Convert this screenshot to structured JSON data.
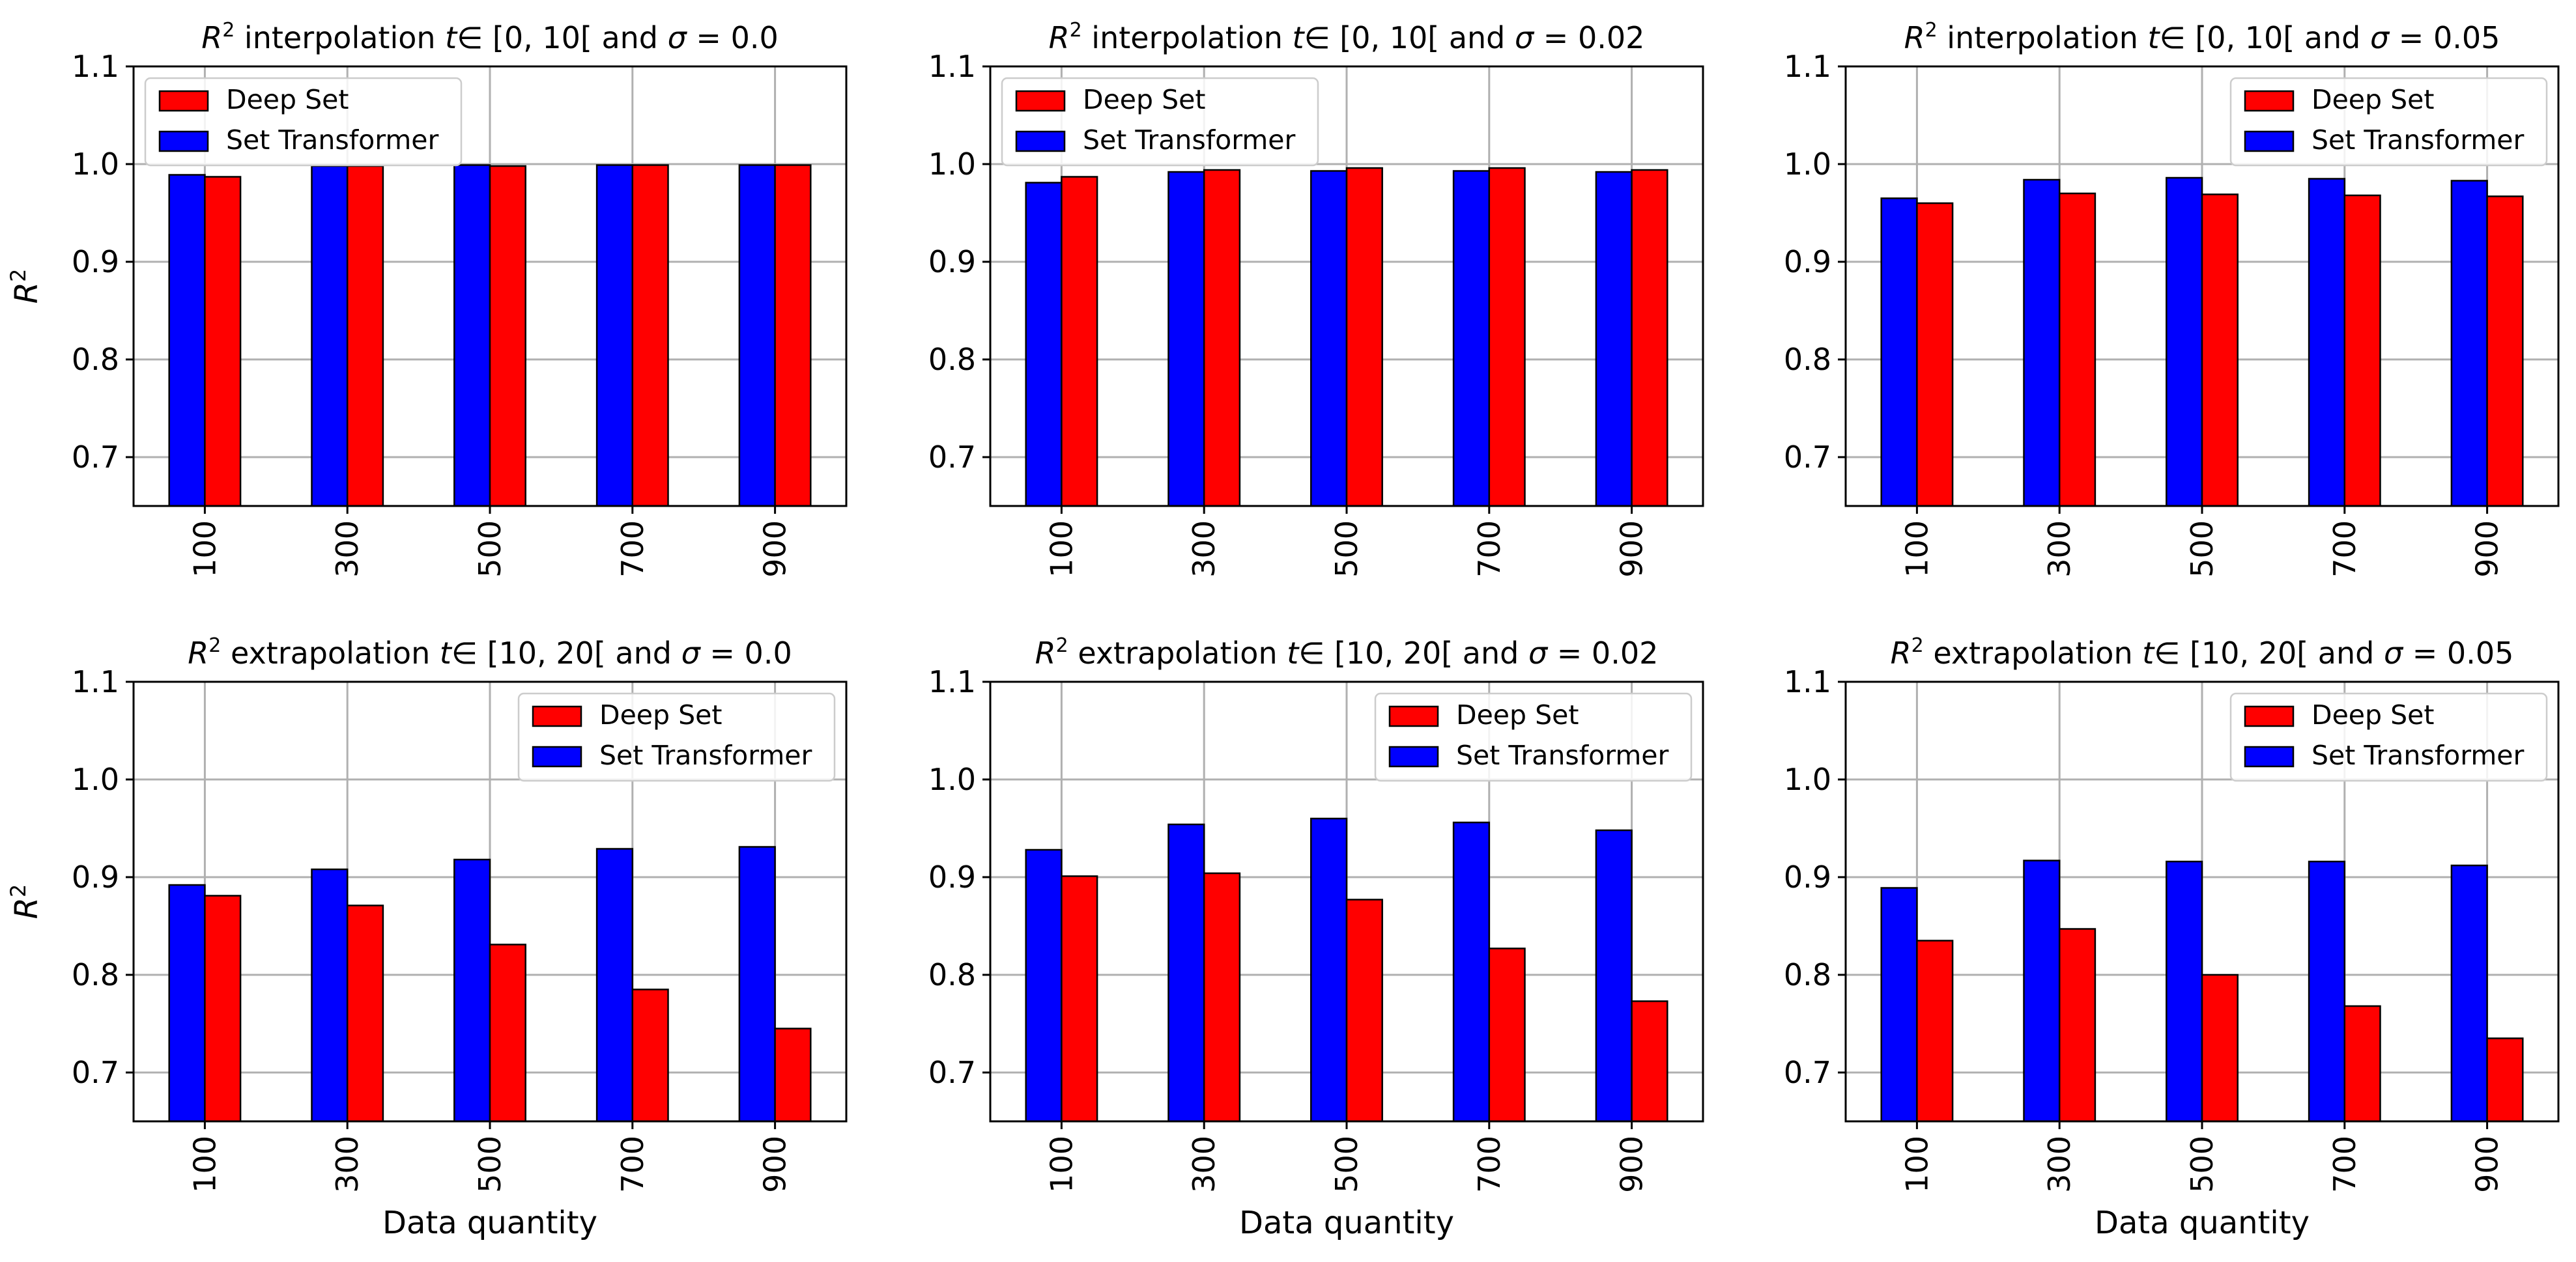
{
  "colors": {
    "deep_set": "#ff0000",
    "set_transformer": "#0000ff",
    "grid": "#b0b0b0",
    "edge": "#000000"
  },
  "chart_data": [
    {
      "type": "bar",
      "title": {
        "prefix": "R",
        "sup": "2",
        "body": " interpolation ",
        "tvar": "t",
        "interval": "∈ [0, 10[",
        "tail": " and ",
        "sigma": "σ",
        "eq": " = 0.0"
      },
      "xlabel": "",
      "ylabel": {
        "base": "R",
        "sup": "2"
      },
      "categories": [
        "100",
        "300",
        "500",
        "700",
        "900"
      ],
      "ylim": [
        0.65,
        1.1
      ],
      "yticks": [
        "0.7",
        "0.8",
        "0.9",
        "1.0",
        "1.1"
      ],
      "grid": true,
      "legend": {
        "position": "top-left",
        "entries": [
          "Deep Set",
          "Set Transformer"
        ]
      },
      "series": [
        {
          "name": "Set Transformer",
          "values": [
            0.989,
            0.998,
            0.999,
            0.999,
            0.999
          ]
        },
        {
          "name": "Deep Set",
          "values": [
            0.987,
            0.998,
            0.998,
            0.999,
            0.999
          ]
        }
      ]
    },
    {
      "type": "bar",
      "title": {
        "prefix": "R",
        "sup": "2",
        "body": " interpolation ",
        "tvar": "t",
        "interval": "∈ [0, 10[",
        "tail": " and ",
        "sigma": "σ",
        "eq": " = 0.02"
      },
      "xlabel": "",
      "ylabel": null,
      "categories": [
        "100",
        "300",
        "500",
        "700",
        "900"
      ],
      "ylim": [
        0.65,
        1.1
      ],
      "yticks": [
        "0.7",
        "0.8",
        "0.9",
        "1.0",
        "1.1"
      ],
      "grid": true,
      "legend": {
        "position": "top-left",
        "entries": [
          "Deep Set",
          "Set Transformer"
        ]
      },
      "series": [
        {
          "name": "Set Transformer",
          "values": [
            0.981,
            0.992,
            0.993,
            0.993,
            0.992
          ]
        },
        {
          "name": "Deep Set",
          "values": [
            0.987,
            0.994,
            0.996,
            0.996,
            0.994
          ]
        }
      ]
    },
    {
      "type": "bar",
      "title": {
        "prefix": "R",
        "sup": "2",
        "body": " interpolation ",
        "tvar": "t",
        "interval": "∈ [0, 10[",
        "tail": " and ",
        "sigma": "σ",
        "eq": " = 0.05"
      },
      "xlabel": "",
      "ylabel": null,
      "categories": [
        "100",
        "300",
        "500",
        "700",
        "900"
      ],
      "ylim": [
        0.65,
        1.1
      ],
      "yticks": [
        "0.7",
        "0.8",
        "0.9",
        "1.0",
        "1.1"
      ],
      "grid": true,
      "legend": {
        "position": "top-right",
        "entries": [
          "Deep Set",
          "Set Transformer"
        ]
      },
      "series": [
        {
          "name": "Set Transformer",
          "values": [
            0.965,
            0.984,
            0.986,
            0.985,
            0.983
          ]
        },
        {
          "name": "Deep Set",
          "values": [
            0.96,
            0.97,
            0.969,
            0.968,
            0.967
          ]
        }
      ]
    },
    {
      "type": "bar",
      "title": {
        "prefix": "R",
        "sup": "2",
        "body": " extrapolation ",
        "tvar": "t",
        "interval": "∈ [10, 20[",
        "tail": " and ",
        "sigma": "σ",
        "eq": " = 0.0"
      },
      "xlabel": "Data quantity",
      "ylabel": {
        "base": "R",
        "sup": "2"
      },
      "categories": [
        "100",
        "300",
        "500",
        "700",
        "900"
      ],
      "ylim": [
        0.65,
        1.1
      ],
      "yticks": [
        "0.7",
        "0.8",
        "0.9",
        "1.0",
        "1.1"
      ],
      "grid": true,
      "legend": {
        "position": "top-right",
        "entries": [
          "Deep Set",
          "Set Transformer"
        ]
      },
      "series": [
        {
          "name": "Set Transformer",
          "values": [
            0.892,
            0.908,
            0.918,
            0.929,
            0.931
          ]
        },
        {
          "name": "Deep Set",
          "values": [
            0.881,
            0.871,
            0.831,
            0.785,
            0.745
          ]
        }
      ]
    },
    {
      "type": "bar",
      "title": {
        "prefix": "R",
        "sup": "2",
        "body": " extrapolation ",
        "tvar": "t",
        "interval": "∈ [10, 20[",
        "tail": " and ",
        "sigma": "σ",
        "eq": " = 0.02"
      },
      "xlabel": "Data quantity",
      "ylabel": null,
      "categories": [
        "100",
        "300",
        "500",
        "700",
        "900"
      ],
      "ylim": [
        0.65,
        1.1
      ],
      "yticks": [
        "0.7",
        "0.8",
        "0.9",
        "1.0",
        "1.1"
      ],
      "grid": true,
      "legend": {
        "position": "top-right",
        "entries": [
          "Deep Set",
          "Set Transformer"
        ]
      },
      "series": [
        {
          "name": "Set Transformer",
          "values": [
            0.928,
            0.954,
            0.96,
            0.956,
            0.948
          ]
        },
        {
          "name": "Deep Set",
          "values": [
            0.901,
            0.904,
            0.877,
            0.827,
            0.773
          ]
        }
      ]
    },
    {
      "type": "bar",
      "title": {
        "prefix": "R",
        "sup": "2",
        "body": " extrapolation ",
        "tvar": "t",
        "interval": "∈ [10, 20[",
        "tail": " and ",
        "sigma": "σ",
        "eq": " = 0.05"
      },
      "xlabel": "Data quantity",
      "ylabel": null,
      "categories": [
        "100",
        "300",
        "500",
        "700",
        "900"
      ],
      "ylim": [
        0.65,
        1.1
      ],
      "yticks": [
        "0.7",
        "0.8",
        "0.9",
        "1.0",
        "1.1"
      ],
      "grid": true,
      "legend": {
        "position": "top-right",
        "entries": [
          "Deep Set",
          "Set Transformer"
        ]
      },
      "series": [
        {
          "name": "Set Transformer",
          "values": [
            0.889,
            0.917,
            0.916,
            0.916,
            0.912
          ]
        },
        {
          "name": "Deep Set",
          "values": [
            0.835,
            0.847,
            0.8,
            0.768,
            0.735
          ]
        }
      ]
    }
  ]
}
